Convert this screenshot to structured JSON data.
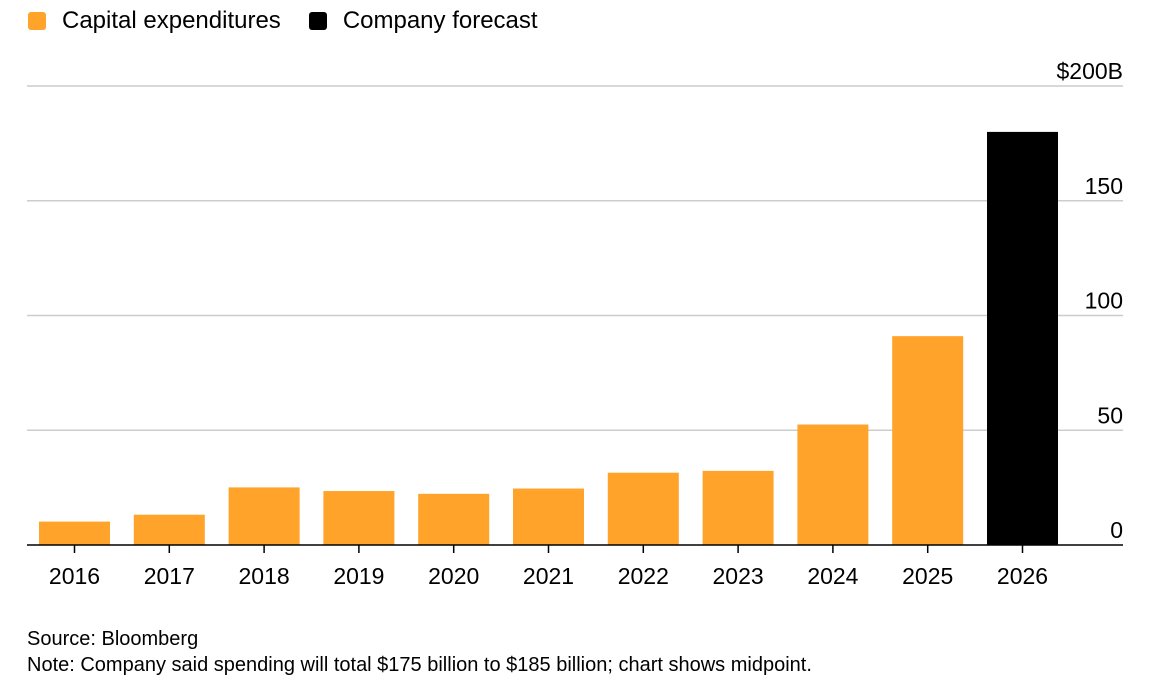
{
  "legend": {
    "items": [
      {
        "label": "Capital expenditures",
        "color": "#ffa32b"
      },
      {
        "label": "Company forecast",
        "color": "#000000"
      }
    ]
  },
  "chart_data": {
    "type": "bar",
    "categories": [
      "2016",
      "2017",
      "2018",
      "2019",
      "2020",
      "2021",
      "2022",
      "2023",
      "2024",
      "2025",
      "2026"
    ],
    "values": [
      10.2,
      13.2,
      25.1,
      23.5,
      22.3,
      24.6,
      31.5,
      32.3,
      52.5,
      91,
      180
    ],
    "series_of_point": [
      "Capital expenditures",
      "Capital expenditures",
      "Capital expenditures",
      "Capital expenditures",
      "Capital expenditures",
      "Capital expenditures",
      "Capital expenditures",
      "Capital expenditures",
      "Capital expenditures",
      "Capital expenditures",
      "Company forecast"
    ],
    "colors": {
      "actual": "#ffa32b",
      "forecast": "#000000"
    },
    "ylim": [
      0,
      200
    ],
    "yticks": [
      {
        "value": 0,
        "label": "0"
      },
      {
        "value": 50,
        "label": "50"
      },
      {
        "value": 100,
        "label": "100"
      },
      {
        "value": 150,
        "label": "150"
      },
      {
        "value": 200,
        "label": "$200B"
      }
    ],
    "grid": true,
    "y_axis_side": "right",
    "legend_position": "top-left",
    "xlabel": "",
    "ylabel": "",
    "title": ""
  },
  "footer": {
    "source": "Source: Bloomberg",
    "note": "Note: Company said spending will total $175 billion to $185 billion; chart shows midpoint."
  }
}
